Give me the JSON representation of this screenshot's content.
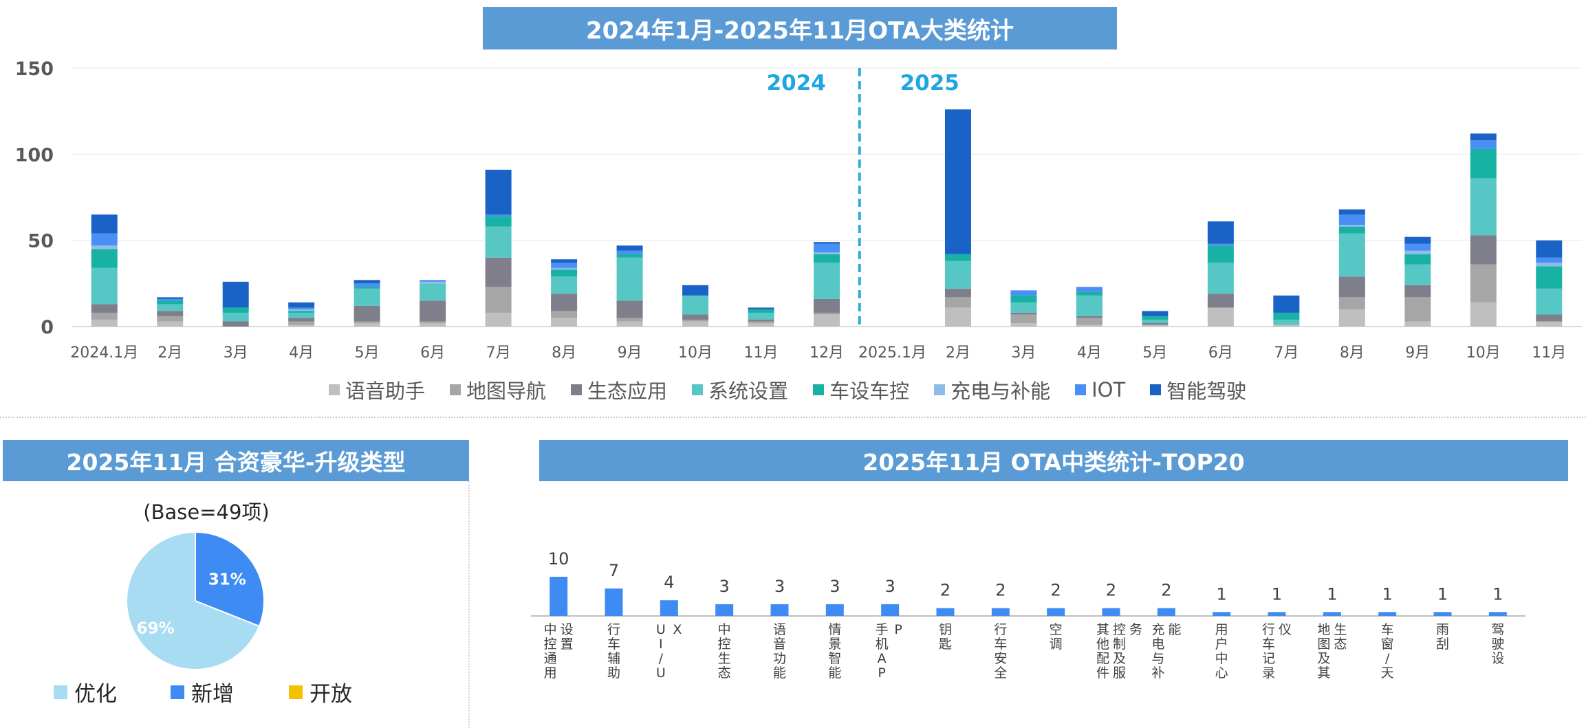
{
  "main_title": "2024年1月-2025年11月OTA大类统计",
  "pie_title": "2025年11月 合资豪华-升级类型",
  "mid_title": "2025年11月 OTA中类统计-TOP20",
  "pie_base": "(Base=49项)",
  "colors": {
    "语音助手": "#bfbfbf",
    "地图导航": "#a6a6a6",
    "生态应用": "#7f7f8c",
    "系统设置": "#56c7c5",
    "车设车控": "#17b2a4",
    "充电与补能": "#8fbce6",
    "IOT": "#4a8ff5",
    "智能驾驶": "#1a63c6",
    "pie_optimize": "#a8dcf2",
    "pie_new": "#3d8bf3",
    "pie_open": "#f2c200",
    "mid_bar": "#3d8bf3"
  },
  "chart_data": [
    {
      "type": "bar",
      "stacked": true,
      "title": "2024年1月-2025年11月OTA大类统计",
      "categories": [
        "2024.1月",
        "2月",
        "3月",
        "4月",
        "5月",
        "6月",
        "7月",
        "8月",
        "9月",
        "10月",
        "11月",
        "12月",
        "2025.1月",
        "2月",
        "3月",
        "4月",
        "5月",
        "6月",
        "7月",
        "8月",
        "9月",
        "10月",
        "11月"
      ],
      "ylim": [
        0,
        150
      ],
      "yticks": [
        0,
        50,
        100,
        150
      ],
      "year_labels": [
        "2024",
        "2025"
      ],
      "legend_position": "bottom",
      "series": [
        {
          "name": "语音助手",
          "values": [
            4,
            3,
            0,
            1,
            2,
            2,
            8,
            5,
            3,
            3,
            2,
            7,
            0,
            11,
            2,
            1,
            1,
            11,
            1,
            10,
            3,
            14,
            3
          ]
        },
        {
          "name": "地图导航",
          "values": [
            4,
            3,
            0,
            2,
            1,
            1,
            15,
            4,
            2,
            1,
            1,
            1,
            0,
            6,
            5,
            4,
            0,
            0,
            0,
            7,
            14,
            22,
            0
          ]
        },
        {
          "name": "生态应用",
          "values": [
            5,
            3,
            3,
            2,
            9,
            12,
            17,
            10,
            10,
            3,
            1,
            8,
            0,
            5,
            1,
            1,
            1,
            8,
            0,
            12,
            7,
            17,
            4
          ]
        },
        {
          "name": "系统设置",
          "values": [
            21,
            4,
            5,
            3,
            10,
            10,
            18,
            10,
            25,
            11,
            4,
            21,
            0,
            16,
            6,
            12,
            2,
            18,
            3,
            25,
            12,
            33,
            15
          ]
        },
        {
          "name": "车设车控",
          "values": [
            11,
            2,
            3,
            1,
            1,
            0,
            6,
            4,
            2,
            0,
            2,
            5,
            0,
            4,
            4,
            2,
            2,
            10,
            4,
            4,
            6,
            17,
            13
          ]
        },
        {
          "name": "充电与补能",
          "values": [
            2,
            0,
            0,
            1,
            0,
            1,
            0,
            1,
            0,
            0,
            0,
            1,
            0,
            0,
            0,
            0,
            0,
            0,
            0,
            1,
            2,
            0,
            2
          ]
        },
        {
          "name": "IOT",
          "values": [
            7,
            1,
            0,
            1,
            2,
            1,
            1,
            3,
            2,
            0,
            0,
            5,
            0,
            0,
            3,
            3,
            0,
            1,
            0,
            6,
            4,
            5,
            3
          ]
        },
        {
          "name": "智能驾驶",
          "values": [
            11,
            1,
            15,
            3,
            2,
            0,
            26,
            2,
            3,
            6,
            1,
            1,
            0,
            84,
            0,
            0,
            3,
            13,
            10,
            3,
            4,
            4,
            10
          ]
        }
      ]
    },
    {
      "type": "pie",
      "title": "2025年11月 合资豪华-升级类型",
      "labels": [
        "优化",
        "新增",
        "开放"
      ],
      "values": [
        69,
        31,
        0
      ],
      "value_labels": [
        "69%",
        "31%",
        ""
      ]
    },
    {
      "type": "bar",
      "title": "2025年11月 OTA中类统计-TOP20",
      "categories": [
        "中控通用设置",
        "行车辅助",
        "UI/UX",
        "中控生态",
        "语音功能",
        "情景智能",
        "手机APP",
        "钥匙",
        "行车安全",
        "空调",
        "其他配件控制及服务",
        "充电与补能",
        "用户中心",
        "行车记录仪",
        "地图及其生态",
        "车窗/天",
        "雨刮",
        "驾驶设"
      ],
      "values": [
        10,
        7,
        4,
        3,
        3,
        3,
        3,
        2,
        2,
        2,
        2,
        2,
        1,
        1,
        1,
        1,
        1,
        1
      ]
    }
  ]
}
